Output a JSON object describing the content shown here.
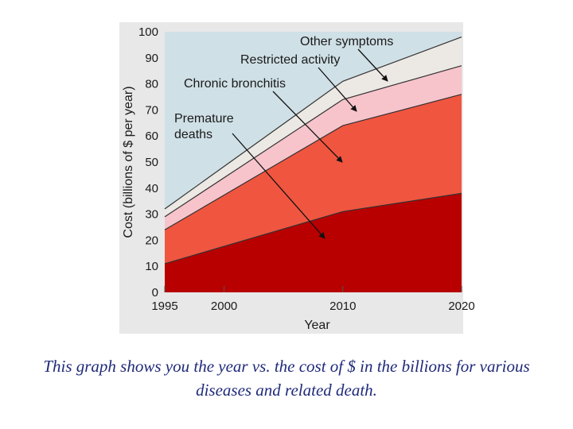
{
  "chart_data": {
    "type": "area",
    "stacked": true,
    "x": [
      1995,
      2010,
      2020
    ],
    "xticks": [
      1995,
      2000,
      2010,
      2020
    ],
    "yticks": [
      0,
      10,
      20,
      30,
      40,
      50,
      60,
      70,
      80,
      90,
      100
    ],
    "xlim": [
      1995,
      2020
    ],
    "ylim": [
      0,
      100
    ],
    "xlabel": "Year",
    "ylabel": "Cost (billions of $ per year)",
    "title": "",
    "grid": false,
    "series": [
      {
        "name": "Premature deaths",
        "values": [
          11,
          31,
          38
        ],
        "color": "#b80000"
      },
      {
        "name": "Chronic bronchitis",
        "values": [
          24,
          64,
          76
        ],
        "color": "#f05540"
      },
      {
        "name": "Restricted activity",
        "values": [
          29,
          74,
          87
        ],
        "color": "#f7c4cc"
      },
      {
        "name": "Other symptoms",
        "values": [
          32,
          81,
          98
        ],
        "color": "#ece8e4"
      }
    ],
    "background_color": "#cfe0e6",
    "annotations": [
      {
        "lines": [
          "Other symptoms"
        ],
        "series": "Other symptoms"
      },
      {
        "lines": [
          "Restricted activity"
        ],
        "series": "Restricted activity"
      },
      {
        "lines": [
          "Chronic bronchitis"
        ],
        "series": "Chronic bronchitis"
      },
      {
        "lines": [
          "Premature",
          "deaths"
        ],
        "series": "Premature deaths"
      }
    ]
  },
  "caption": "This graph shows you the year vs. the cost of $ in the billions for various diseases and related death.",
  "caption_color": "#1f2a7a"
}
